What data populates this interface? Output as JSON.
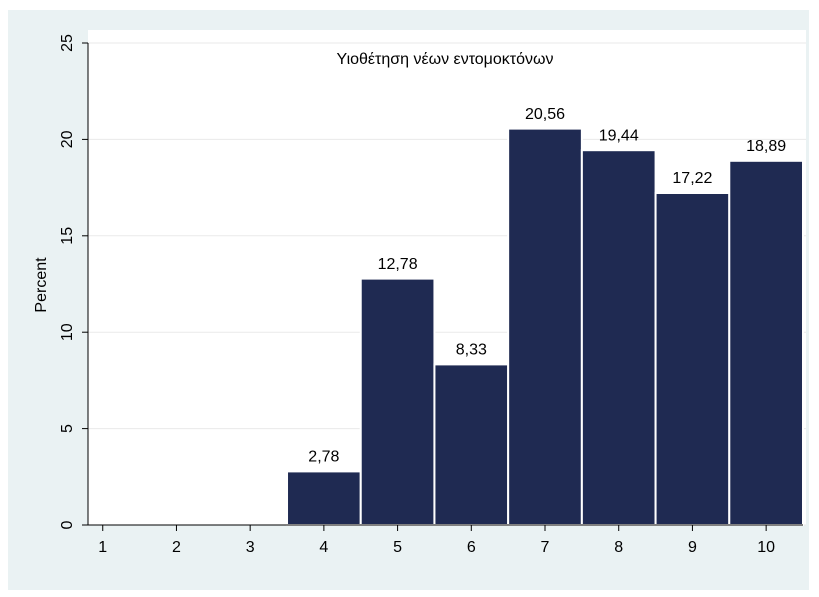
{
  "chart_data": {
    "type": "histogram",
    "title": "Υιοθέτηση νέων εντομοκτόνων",
    "ylabel": "Percent",
    "bins": [
      3.5,
      4.5,
      5.5,
      6.5,
      7.5,
      8.5,
      9.5,
      10.5
    ],
    "values": [
      2.78,
      12.78,
      8.33,
      20.56,
      19.44,
      17.22,
      18.89
    ],
    "value_labels": [
      "2,78",
      "12,78",
      "8,33",
      "20,56",
      "19,44",
      "17,22",
      "18,89"
    ],
    "color": "#1f2a52",
    "xlim": [
      0.8,
      10.5
    ],
    "xticks": [
      1,
      2,
      3,
      4,
      5,
      6,
      7,
      8,
      9,
      10
    ],
    "ylim": [
      0,
      25
    ],
    "yticks": [
      0,
      5,
      10,
      15,
      20,
      25
    ],
    "grid": true
  }
}
